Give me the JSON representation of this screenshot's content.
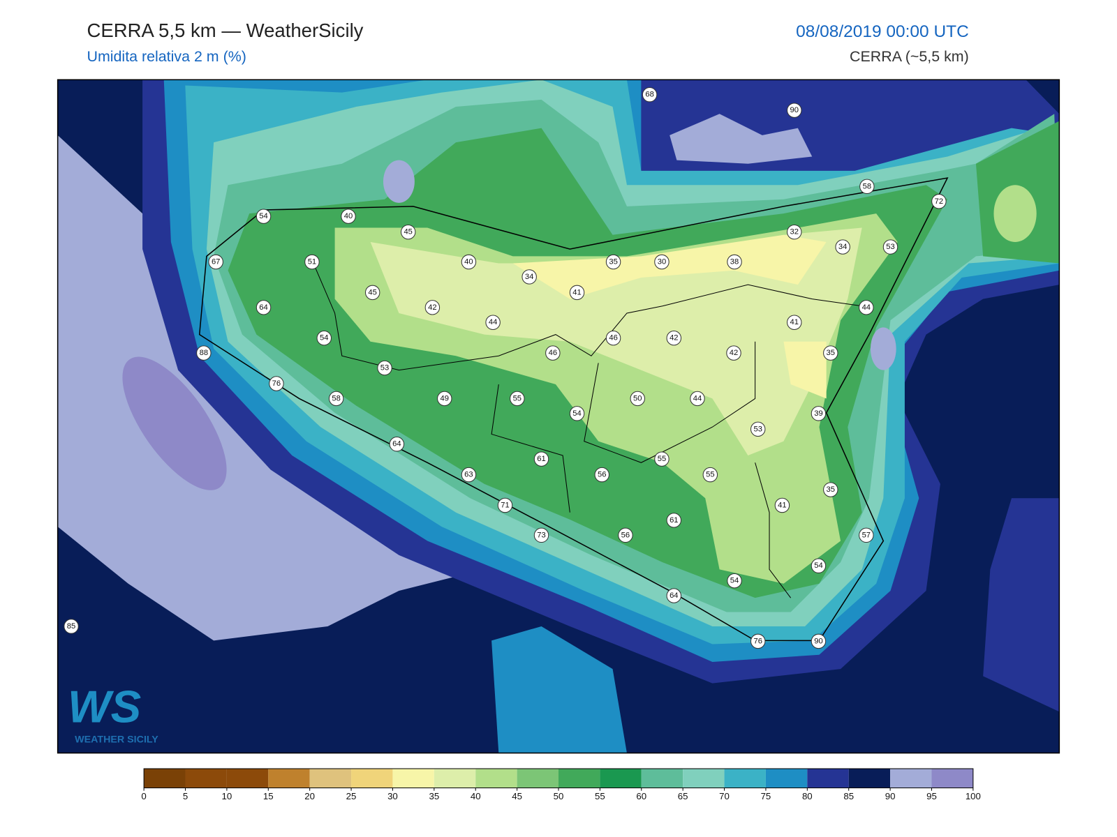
{
  "header": {
    "title": "CERRA 5,5 km — WeatherSicily",
    "subtitle": "Umidita relativa 2 m (%)",
    "datetime": "08/08/2019 00:00 UTC",
    "model": "CERRA (~5,5 km)"
  },
  "stations": [
    68,
    90,
    58,
    72,
    54,
    40,
    45,
    32,
    34,
    53,
    67,
    51,
    40,
    35,
    30,
    38,
    34,
    45,
    41,
    64,
    42,
    44,
    44,
    41,
    54,
    46,
    42,
    88,
    46,
    42,
    35,
    53,
    76,
    58,
    49,
    55,
    50,
    44,
    54,
    39,
    53,
    64,
    61,
    55,
    63,
    56,
    55,
    35,
    71,
    41,
    61,
    73,
    56,
    57,
    54,
    54,
    64,
    85,
    76,
    90
  ],
  "colorbar": {
    "ticks": [
      0,
      5,
      10,
      15,
      20,
      25,
      30,
      35,
      40,
      45,
      50,
      55,
      60,
      65,
      70,
      75,
      80,
      85,
      90,
      95,
      100
    ],
    "colors": [
      "#7a4106",
      "#8c4a0a",
      "#8c4a0a",
      "#bf812d",
      "#dfc27d",
      "#f0d47a",
      "#f7f5a8",
      "#ddeeaa",
      "#b2df8a",
      "#7cc576",
      "#41a95a",
      "#1a9850",
      "#5ebd9a",
      "#80d0bd",
      "#3bb2c6",
      "#1e8ec4",
      "#253494",
      "#081d58",
      "#a3acd8",
      "#8e89c8"
    ]
  },
  "logo": {
    "mark": "WS",
    "text": "WEATHER SICILY"
  }
}
